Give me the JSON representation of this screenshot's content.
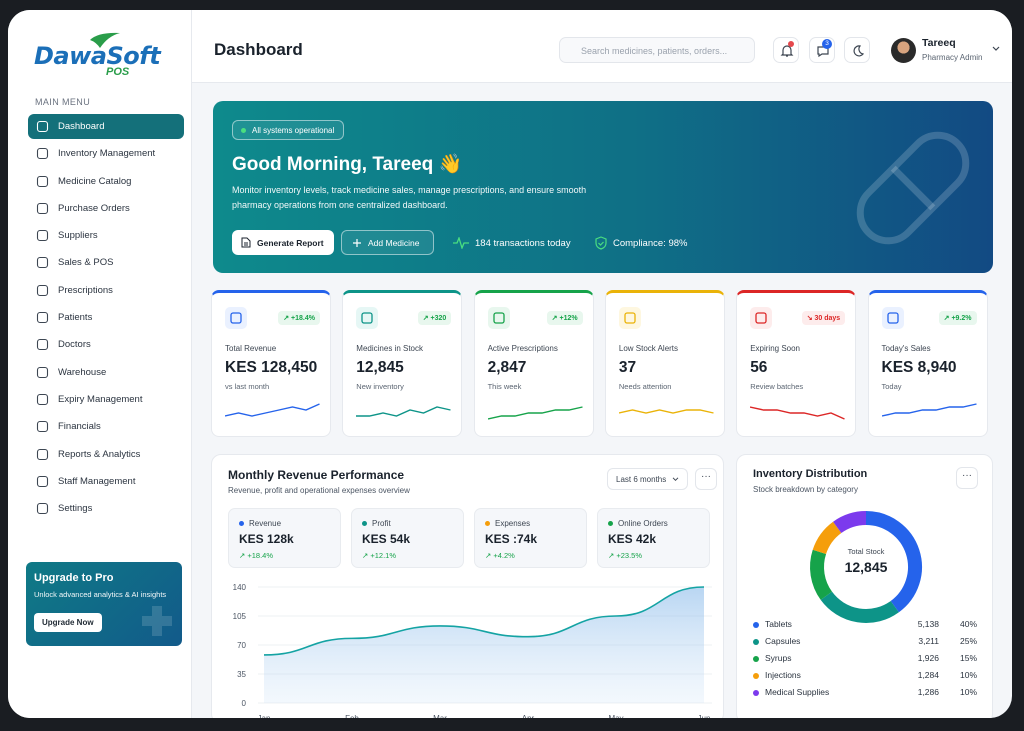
{
  "brand": {
    "name_part1": "Dawa",
    "name_part2": "Soft",
    "sub": "POS"
  },
  "sidebar": {
    "title": "MAIN MENU",
    "items": [
      {
        "label": "Dashboard",
        "icon": "grid-icon",
        "active": true
      },
      {
        "label": "Inventory Management",
        "icon": "box-icon"
      },
      {
        "label": "Medicine Catalog",
        "icon": "pill-icon"
      },
      {
        "label": "Purchase Orders",
        "icon": "cart-icon"
      },
      {
        "label": "Suppliers",
        "icon": "truck-icon"
      },
      {
        "label": "Sales & POS",
        "icon": "scan-icon"
      },
      {
        "label": "Prescriptions",
        "icon": "file-icon"
      },
      {
        "label": "Patients",
        "icon": "users-icon"
      },
      {
        "label": "Doctors",
        "icon": "stethoscope-icon"
      },
      {
        "label": "Warehouse",
        "icon": "warehouse-icon"
      },
      {
        "label": "Expiry Management",
        "icon": "calendar-icon"
      },
      {
        "label": "Financials",
        "icon": "wallet-icon"
      },
      {
        "label": "Reports & Analytics",
        "icon": "chart-icon"
      },
      {
        "label": "Staff Management",
        "icon": "staff-icon"
      },
      {
        "label": "Settings",
        "icon": "gear-icon"
      }
    ],
    "upgrade": {
      "title": "Upgrade to Pro",
      "desc": "Unlock advanced analytics & AI insights",
      "button": "Upgrade Now"
    }
  },
  "header": {
    "title": "Dashboard",
    "search_placeholder": "Search medicines, patients, orders...",
    "message_badge": "3",
    "user": {
      "name": "Tareeq",
      "role": "Pharmacy Admin"
    }
  },
  "hero": {
    "status": "All systems operational",
    "greeting": "Good Morning, Tareeq 👋",
    "desc": "Monitor inventory levels, track medicine sales, manage prescriptions, and ensure smooth pharmacy operations from one centralized dashboard.",
    "btn_report": "Generate Report",
    "btn_add": "Add Medicine",
    "transactions": "184 transactions today",
    "compliance": "Compliance: 98%"
  },
  "kpis": [
    {
      "label": "Total Revenue",
      "value": "KES 128,450",
      "sub": "vs last month",
      "change": "↗ +18.4%",
      "color": "#2563eb",
      "icon": "trend-icon"
    },
    {
      "label": "Medicines in Stock",
      "value": "12,845",
      "sub": "New inventory",
      "change": "↗ +320",
      "color": "#0d9488",
      "icon": "cube-icon"
    },
    {
      "label": "Active Prescriptions",
      "value": "2,847",
      "sub": "This week",
      "change": "↗ +12%",
      "color": "#16a34a",
      "icon": "doc-icon"
    },
    {
      "label": "Low Stock Alerts",
      "value": "37",
      "sub": "Needs attention",
      "change": "",
      "color": "#eab308",
      "icon": "warning-icon"
    },
    {
      "label": "Expiring Soon",
      "value": "56",
      "sub": "Review batches",
      "change": "↘ 30 days",
      "color": "#dc2626",
      "icon": "calendar-icon"
    },
    {
      "label": "Today's Sales",
      "value": "KES 8,940",
      "sub": "Today",
      "change": "↗ +9.2%",
      "color": "#2563eb",
      "icon": "cart-icon"
    }
  ],
  "revenue": {
    "title": "Monthly Revenue Performance",
    "subtitle": "Revenue, profit and operational expenses overview",
    "period": "Last 6 months",
    "stats": [
      {
        "label": "Revenue",
        "value": "KES 128k",
        "change": "↗ +18.4%",
        "color": "#2563eb"
      },
      {
        "label": "Profit",
        "value": "KES 54k",
        "change": "↗ +12.1%",
        "color": "#0d9488"
      },
      {
        "label": "Expenses",
        "value": "KES :74k",
        "change": "↗ +4.2%",
        "color": "#f59e0b"
      },
      {
        "label": "Online Orders",
        "value": "KES 42k",
        "change": "↗ +23.5%",
        "color": "#16a34a"
      }
    ]
  },
  "chart_data": {
    "type": "area",
    "x": [
      "Jan",
      "Feb",
      "Mar",
      "Apr",
      "May",
      "Jun"
    ],
    "yticks": [
      0,
      35,
      70,
      105,
      140
    ],
    "ylim": [
      0,
      140
    ],
    "values": [
      58,
      78,
      93,
      80,
      105,
      140
    ],
    "color": "#14a3a3"
  },
  "inventory": {
    "title": "Inventory Distribution",
    "subtitle": "Stock breakdown by category",
    "center_label": "Total Stock",
    "center_value": "12,845",
    "categories": [
      {
        "name": "Tablets",
        "count": "5,138",
        "pct": "40%",
        "value": 40,
        "color": "#2563eb"
      },
      {
        "name": "Capsules",
        "count": "3,211",
        "pct": "25%",
        "value": 25,
        "color": "#0d9488"
      },
      {
        "name": "Syrups",
        "count": "1,926",
        "pct": "15%",
        "value": 15,
        "color": "#16a34a"
      },
      {
        "name": "Injections",
        "count": "1,284",
        "pct": "10%",
        "value": 10,
        "color": "#f59e0b"
      },
      {
        "name": "Medical Supplies",
        "count": "1,286",
        "pct": "10%",
        "value": 10,
        "color": "#7c3aed"
      }
    ]
  }
}
